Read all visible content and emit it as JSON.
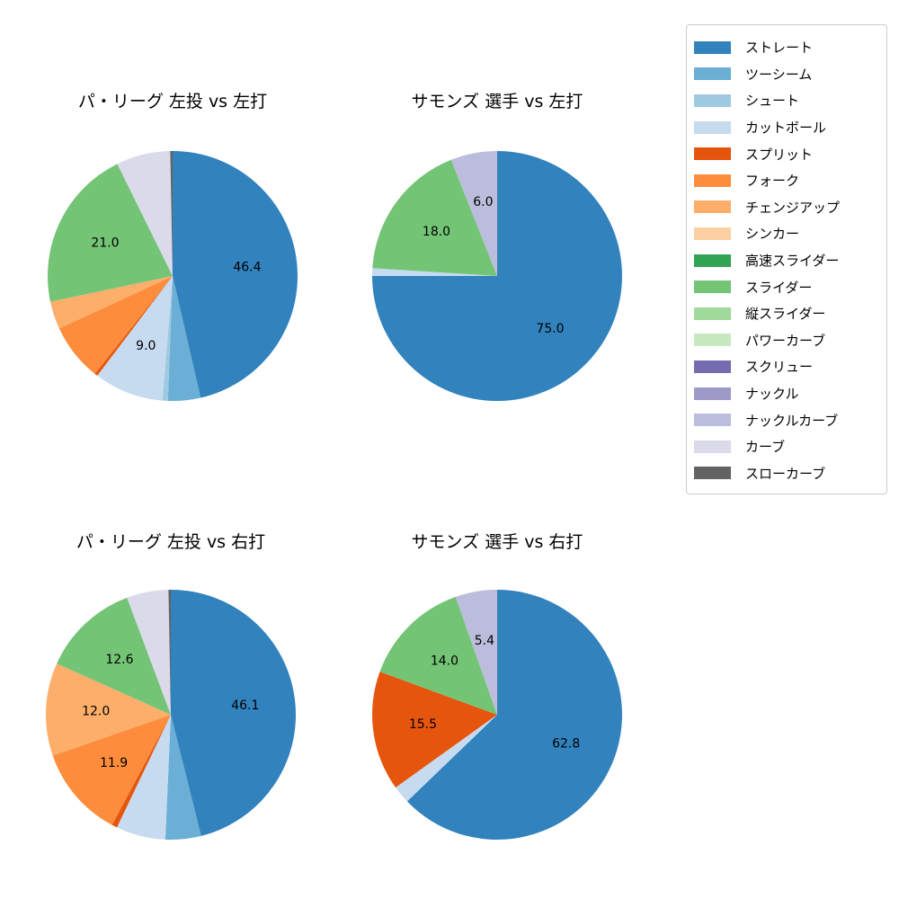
{
  "figure": {
    "background": "#ffffff"
  },
  "legend": {
    "items": [
      {
        "id": "straight",
        "label": "ストレート",
        "color": "#3182bd"
      },
      {
        "id": "two-seam",
        "label": "ツーシーム",
        "color": "#6baed6"
      },
      {
        "id": "shuuto",
        "label": "シュート",
        "color": "#9ecae1"
      },
      {
        "id": "cut-ball",
        "label": "カットボール",
        "color": "#c6dbef"
      },
      {
        "id": "split",
        "label": "スプリット",
        "color": "#e6550d"
      },
      {
        "id": "fork",
        "label": "フォーク",
        "color": "#fd8d3c"
      },
      {
        "id": "changeup",
        "label": "チェンジアップ",
        "color": "#fdae6b"
      },
      {
        "id": "sinker",
        "label": "シンカー",
        "color": "#fdd0a2"
      },
      {
        "id": "fast-slider",
        "label": "高速スライダー",
        "color": "#31a354"
      },
      {
        "id": "slider",
        "label": "スライダー",
        "color": "#74c476"
      },
      {
        "id": "vertical-slider",
        "label": "縦スライダー",
        "color": "#a1d99b"
      },
      {
        "id": "power-curve",
        "label": "パワーカーブ",
        "color": "#c7e9c0"
      },
      {
        "id": "screw",
        "label": "スクリュー",
        "color": "#756bb1"
      },
      {
        "id": "knuckle",
        "label": "ナックル",
        "color": "#9e9ac8"
      },
      {
        "id": "knuckle-curve",
        "label": "ナックルカーブ",
        "color": "#bcbddc"
      },
      {
        "id": "curve",
        "label": "カーブ",
        "color": "#dadaeb"
      },
      {
        "id": "slow-curve",
        "label": "スローカーブ",
        "color": "#636363"
      }
    ]
  },
  "chart_data": [
    {
      "type": "pie",
      "title": "パ・リーグ 左投 vs 左打",
      "start_angle": "top",
      "direction": "clockwise",
      "slices": [
        {
          "id": "straight",
          "name": "ストレート",
          "pct": 46.4,
          "label": "46.4"
        },
        {
          "id": "two-seam",
          "name": "ツーシーム",
          "pct": 4.2,
          "label": null
        },
        {
          "id": "shuuto",
          "name": "シュート",
          "pct": 0.7,
          "label": null
        },
        {
          "id": "cut-ball",
          "name": "カットボール",
          "pct": 9.0,
          "label": "9.0"
        },
        {
          "id": "split",
          "name": "スプリット",
          "pct": 0.4,
          "label": null
        },
        {
          "id": "fork",
          "name": "フォーク",
          "pct": 7.4,
          "label": null
        },
        {
          "id": "changeup",
          "name": "チェンジアップ",
          "pct": 3.6,
          "label": null
        },
        {
          "id": "slider",
          "name": "スライダー",
          "pct": 21.0,
          "label": "21.0"
        },
        {
          "id": "curve",
          "name": "カーブ",
          "pct": 7.0,
          "label": null
        },
        {
          "id": "slow-curve",
          "name": "スローカーブ",
          "pct": 0.3,
          "label": null
        }
      ]
    },
    {
      "type": "pie",
      "title": "サモンズ 選手 vs 左打",
      "start_angle": "top",
      "direction": "clockwise",
      "slices": [
        {
          "id": "straight",
          "name": "ストレート",
          "pct": 75.0,
          "label": "75.0"
        },
        {
          "id": "cut-ball",
          "name": "カットボール",
          "pct": 1.0,
          "label": null
        },
        {
          "id": "slider",
          "name": "スライダー",
          "pct": 18.0,
          "label": "18.0"
        },
        {
          "id": "knuckle-curve",
          "name": "ナックルカーブ",
          "pct": 6.0,
          "label": "6.0"
        }
      ]
    },
    {
      "type": "pie",
      "title": "パ・リーグ 左投 vs 右打",
      "start_angle": "top",
      "direction": "clockwise",
      "slices": [
        {
          "id": "straight",
          "name": "ストレート",
          "pct": 46.1,
          "label": "46.1"
        },
        {
          "id": "two-seam",
          "name": "ツーシーム",
          "pct": 4.6,
          "label": null
        },
        {
          "id": "cut-ball",
          "name": "カットボール",
          "pct": 6.4,
          "label": null
        },
        {
          "id": "split",
          "name": "スプリット",
          "pct": 0.7,
          "label": null
        },
        {
          "id": "fork",
          "name": "フォーク",
          "pct": 11.9,
          "label": "11.9"
        },
        {
          "id": "changeup",
          "name": "チェンジアップ",
          "pct": 12.0,
          "label": "12.0"
        },
        {
          "id": "slider",
          "name": "スライダー",
          "pct": 12.6,
          "label": "12.6"
        },
        {
          "id": "curve",
          "name": "カーブ",
          "pct": 5.4,
          "label": null
        },
        {
          "id": "slow-curve",
          "name": "スローカーブ",
          "pct": 0.3,
          "label": null
        }
      ]
    },
    {
      "type": "pie",
      "title": "サモンズ 選手 vs 右打",
      "start_angle": "top",
      "direction": "clockwise",
      "slices": [
        {
          "id": "straight",
          "name": "ストレート",
          "pct": 62.8,
          "label": "62.8"
        },
        {
          "id": "cut-ball",
          "name": "カットボール",
          "pct": 2.3,
          "label": null
        },
        {
          "id": "split",
          "name": "スプリット",
          "pct": 15.5,
          "label": "15.5"
        },
        {
          "id": "slider",
          "name": "スライダー",
          "pct": 14.0,
          "label": "14.0"
        },
        {
          "id": "knuckle-curve",
          "name": "ナックルカーブ",
          "pct": 5.4,
          "label": "5.4"
        }
      ]
    }
  ]
}
